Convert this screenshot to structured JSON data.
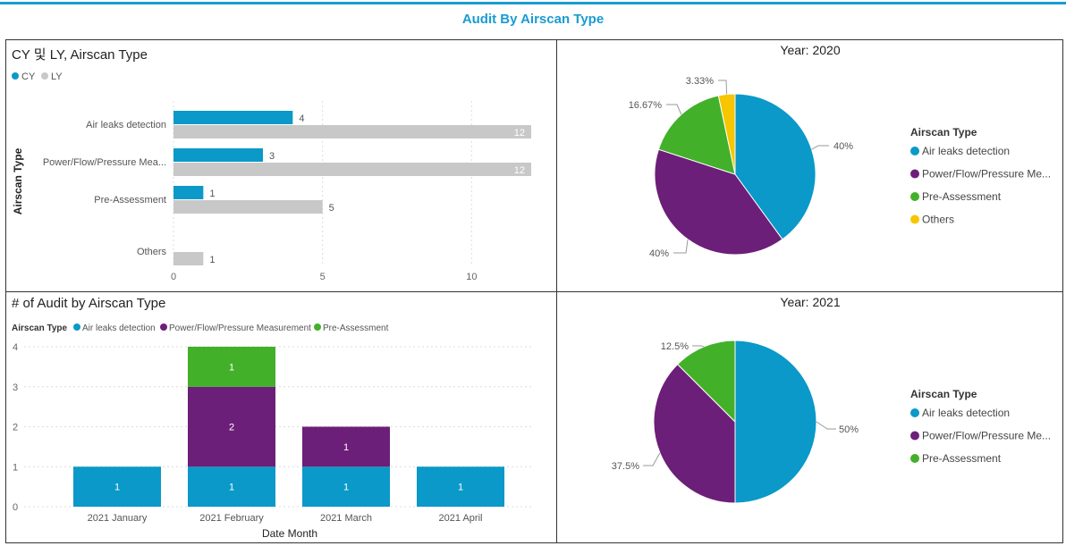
{
  "page_title": "Audit By Airscan Type",
  "colors": {
    "air_leaks": "#0a99c8",
    "power_flow": "#6c1f78",
    "pre_assessment": "#43b02a",
    "others": "#f7c600",
    "ly": "#c8c8c8",
    "accent": "#1a9bd1"
  },
  "chart_data": [
    {
      "type": "bar",
      "orientation": "horizontal",
      "title": "CY 및 LY, Airscan Type",
      "ylabel": "Airscan Type",
      "xlabel": "",
      "legend": {
        "position": "top-left",
        "items": [
          "CY",
          "LY"
        ]
      },
      "categories": [
        "Air leaks detection",
        "Power/Flow/Pressure Mea...",
        "Pre-Assessment",
        "Others"
      ],
      "series": [
        {
          "name": "CY",
          "values": [
            4,
            3,
            1,
            null
          ]
        },
        {
          "name": "LY",
          "values": [
            12,
            12,
            5,
            1
          ]
        }
      ],
      "xlim": [
        0,
        12
      ],
      "xticks": [
        "0",
        "5",
        "10"
      ],
      "grid": true
    },
    {
      "type": "pie",
      "title": "Year: 2020",
      "legend_title": "Airscan Type",
      "legend": {
        "position": "right"
      },
      "labels": [
        "Air leaks detection",
        "Power/Flow/Pressure Me...",
        "Pre-Assessment",
        "Others"
      ],
      "values": [
        40,
        40,
        16.67,
        3.33
      ],
      "data_labels": [
        "40%",
        "40%",
        "16.67%",
        "3.33%"
      ]
    },
    {
      "type": "bar",
      "stacked": true,
      "title": "# of Audit by Airscan Type",
      "xlabel": "Date Month",
      "ylabel": "",
      "legend_title": "Airscan Type",
      "legend": {
        "position": "top-left",
        "items": [
          "Air leaks detection",
          "Power/Flow/Pressure Measurement",
          "Pre-Assessment"
        ]
      },
      "categories": [
        "2021 January",
        "2021 February",
        "2021 March",
        "2021 April"
      ],
      "series": [
        {
          "name": "Air leaks detection",
          "values": [
            1,
            1,
            1,
            1
          ]
        },
        {
          "name": "Power/Flow/Pressure Measurement",
          "values": [
            0,
            2,
            1,
            0
          ]
        },
        {
          "name": "Pre-Assessment",
          "values": [
            0,
            1,
            0,
            0
          ]
        }
      ],
      "ylim": [
        0,
        4
      ],
      "yticks": [
        "0",
        "1",
        "2",
        "3",
        "4"
      ],
      "grid": true
    },
    {
      "type": "pie",
      "title": "Year: 2021",
      "legend_title": "Airscan Type",
      "legend": {
        "position": "right"
      },
      "labels": [
        "Air leaks detection",
        "Power/Flow/Pressure Me...",
        "Pre-Assessment"
      ],
      "values": [
        50,
        37.5,
        12.5
      ],
      "data_labels": [
        "50%",
        "37.5%",
        "12.5%"
      ]
    }
  ]
}
